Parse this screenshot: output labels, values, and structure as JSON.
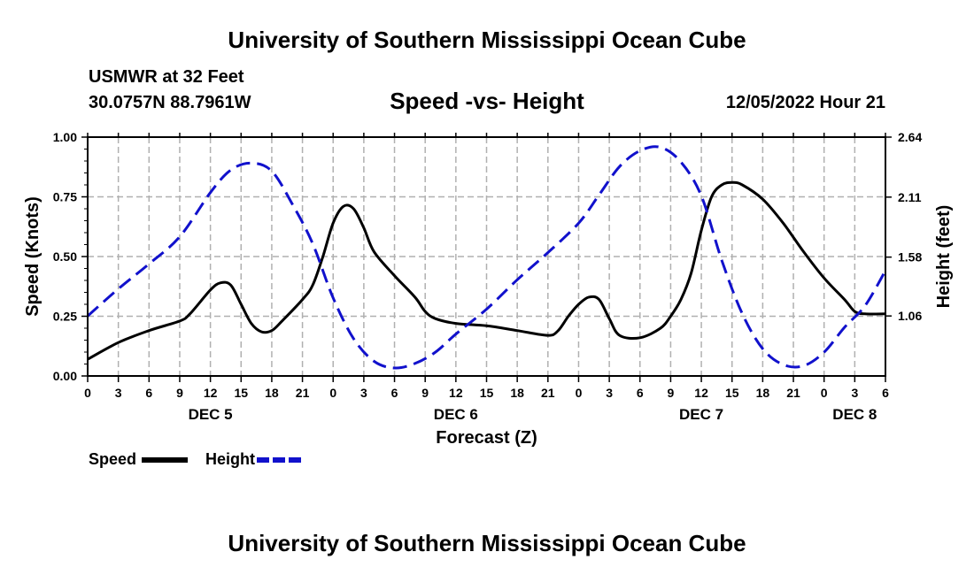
{
  "header": {
    "title": "University of Southern Mississippi Ocean Cube",
    "station": "USMWR at 32 Feet",
    "coords": "30.0757N  88.7961W",
    "datetime": "12/05/2022 Hour 21"
  },
  "footer": {
    "title": "University of Southern Mississippi Ocean Cube"
  },
  "chart_data": {
    "type": "line",
    "title": "Speed -vs- Height",
    "xlabel": "Forecast (Z)",
    "ylabel": "Speed (Knots)",
    "y2label": "Height (feet)",
    "x_range_hours": [
      0,
      78
    ],
    "ylim": [
      0,
      1.0
    ],
    "y2lim": [
      0.53,
      2.64
    ],
    "x_tick_labels": [
      "0",
      "3",
      "6",
      "9",
      "12",
      "15",
      "18",
      "21",
      "0",
      "3",
      "6",
      "9",
      "12",
      "15",
      "18",
      "21",
      "0",
      "3",
      "6",
      "9",
      "12",
      "15",
      "18",
      "21",
      "0",
      "3",
      "6"
    ],
    "y_tick_labels": [
      "0.00",
      "0.25",
      "0.50",
      "0.75",
      "1.00"
    ],
    "y2_tick_labels": [
      "1.06",
      "1.58",
      "2.11",
      "2.64"
    ],
    "y2_tick_values": [
      1.06,
      1.58,
      2.11,
      2.64
    ],
    "day_labels": [
      {
        "label": "DEC 5",
        "hour": 12
      },
      {
        "label": "DEC 6",
        "hour": 36
      },
      {
        "label": "DEC 7",
        "hour": 60
      },
      {
        "label": "DEC 8",
        "hour": 75
      }
    ],
    "grid": true,
    "legend": "bottom-left",
    "series": [
      {
        "name": "Speed",
        "axis": "left",
        "color": "#000000",
        "style": "solid",
        "x": [
          0,
          3,
          6,
          9,
          10,
          12,
          13,
          14,
          15,
          16,
          17,
          18,
          19,
          21,
          22,
          23,
          24,
          25,
          26,
          27,
          28,
          30,
          32,
          33,
          34,
          36,
          39,
          42,
          45,
          46,
          47,
          48,
          49,
          50,
          51,
          52,
          54,
          56,
          57,
          58,
          59,
          60,
          61,
          62,
          63,
          64,
          66,
          68,
          70,
          72,
          74,
          75,
          76,
          78
        ],
        "y": [
          0.07,
          0.14,
          0.19,
          0.23,
          0.26,
          0.36,
          0.39,
          0.38,
          0.3,
          0.22,
          0.185,
          0.19,
          0.23,
          0.32,
          0.38,
          0.5,
          0.64,
          0.71,
          0.7,
          0.62,
          0.52,
          0.42,
          0.33,
          0.27,
          0.24,
          0.22,
          0.21,
          0.19,
          0.17,
          0.19,
          0.25,
          0.3,
          0.33,
          0.32,
          0.24,
          0.17,
          0.16,
          0.2,
          0.25,
          0.32,
          0.43,
          0.61,
          0.75,
          0.8,
          0.81,
          0.8,
          0.74,
          0.64,
          0.52,
          0.41,
          0.32,
          0.27,
          0.26,
          0.26
        ]
      },
      {
        "name": "Height",
        "axis": "right",
        "color": "#1111cc",
        "style": "dashed",
        "x": [
          0,
          3,
          6,
          9,
          12,
          14,
          16,
          18,
          20,
          22,
          24,
          26,
          28,
          30,
          32,
          34,
          36,
          39,
          42,
          45,
          48,
          50,
          52,
          54,
          56,
          58,
          60,
          62,
          64,
          66,
          68,
          70,
          72,
          74,
          76,
          78
        ],
        "y": [
          1.06,
          1.3,
          1.52,
          1.76,
          2.15,
          2.35,
          2.41,
          2.34,
          2.05,
          1.7,
          1.22,
          0.86,
          0.66,
          0.6,
          0.64,
          0.74,
          0.9,
          1.12,
          1.38,
          1.62,
          1.88,
          2.13,
          2.38,
          2.52,
          2.55,
          2.42,
          2.12,
          1.55,
          1.08,
          0.77,
          0.63,
          0.62,
          0.74,
          0.96,
          1.15,
          1.46
        ]
      }
    ]
  }
}
